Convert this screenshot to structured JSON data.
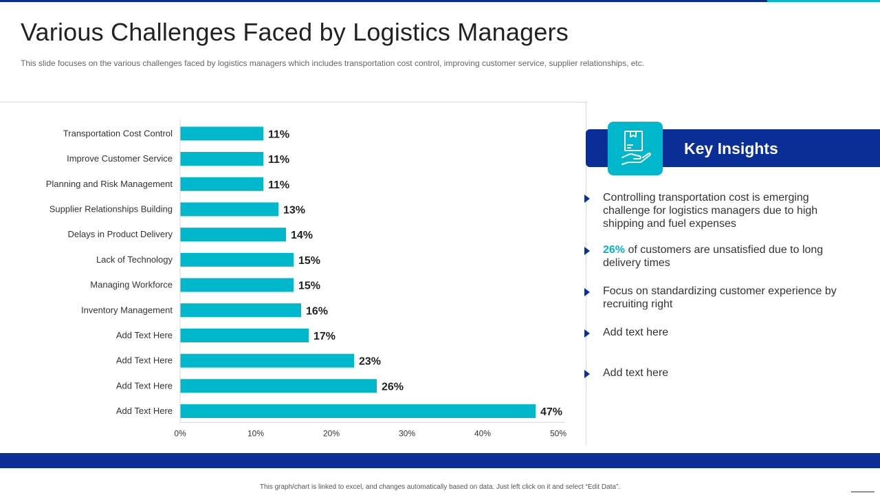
{
  "page": {
    "title": "Various Challenges Faced by Logistics Managers",
    "subtitle": "This slide focuses on the various challenges faced by logistics managers which includes transportation cost control, improving customer service, supplier relationships, etc.",
    "footer_note": "This graph/chart is linked to excel, and changes automatically based on data. Just left click on it and select “Edit Data”."
  },
  "colors": {
    "primary": "#0a2d96",
    "accent": "#00b7cc",
    "bar": "#00b7cc"
  },
  "insights": {
    "title": "Key Insights",
    "icon": "box-on-hand-icon",
    "items": [
      {
        "highlight": "",
        "text": "Controlling transportation cost is emerging challenge for logistics managers due to high shipping and fuel expenses"
      },
      {
        "highlight": "26%",
        "text": " of customers are unsatisfied due to long delivery times"
      },
      {
        "highlight": "",
        "text": "Focus on standardizing customer experience by recruiting right"
      },
      {
        "highlight": "",
        "text": "Add text here"
      },
      {
        "highlight": "",
        "text": "Add text here"
      }
    ]
  },
  "chart_data": {
    "type": "bar",
    "orientation": "horizontal",
    "categories": [
      "Transportation Cost Control",
      "Improve Customer Service",
      "Planning and Risk Management",
      "Supplier Relationships Building",
      "Delays in Product Delivery",
      "Lack of Technology",
      "Managing Workforce",
      "Inventory Management",
      "Add Text Here",
      "Add Text Here",
      "Add Text Here",
      "Add Text Here"
    ],
    "values": [
      11,
      11,
      11,
      13,
      14,
      15,
      15,
      16,
      17,
      23,
      26,
      47
    ],
    "value_labels": [
      "11%",
      "11%",
      "11%",
      "13%",
      "14%",
      "15%",
      "15%",
      "16%",
      "17%",
      "23%",
      "26%",
      "47%"
    ],
    "xlim": [
      0,
      50
    ],
    "xticks": [
      0,
      10,
      20,
      30,
      40,
      50
    ],
    "xtick_labels": [
      "0%",
      "10%",
      "20%",
      "30%",
      "40%",
      "50%"
    ],
    "title": "",
    "xlabel": "",
    "ylabel": "",
    "grid": false,
    "legend": "none"
  }
}
